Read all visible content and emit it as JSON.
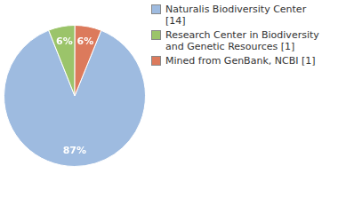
{
  "chart_data": {
    "type": "pie",
    "categories": [
      "Naturalis Biodiversity Center [14]",
      "Research Center in Biodiversity and Genetic Resources [1]",
      "Mined from GenBank, NCBI [1]"
    ],
    "values": [
      87,
      6,
      6
    ],
    "value_labels": [
      "87%",
      "6%",
      "6%"
    ],
    "colors": [
      "#9ebbe0",
      "#9bc46a",
      "#dc7a5c"
    ],
    "data_labels": true,
    "legend": "top-right"
  }
}
